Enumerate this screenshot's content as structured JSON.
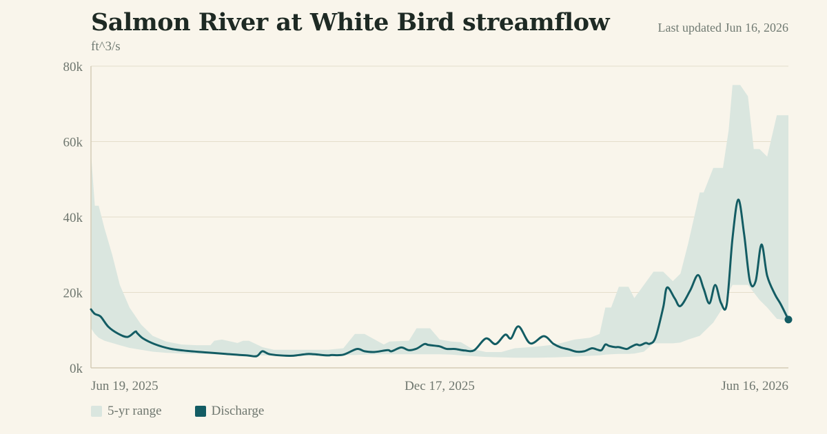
{
  "header": {
    "title": "Salmon River at White Bird streamflow",
    "updated": "Last updated Jun 16, 2026",
    "unit": "ft^3/s"
  },
  "legend": {
    "range_label": "5-yr range",
    "discharge_label": "Discharge"
  },
  "colors": {
    "background": "#f9f5eb",
    "range_fill": "#dae6df",
    "discharge_line": "#135c63",
    "grid": "#e4ddcb",
    "axis": "#d4ccb6"
  },
  "chart_data": {
    "type": "line",
    "ylabel": "ft^3/s",
    "ylim": [
      0,
      80000
    ],
    "y_ticks": [
      {
        "value": 0,
        "label": "0k"
      },
      {
        "value": 20000,
        "label": "20k"
      },
      {
        "value": 40000,
        "label": "40k"
      },
      {
        "value": 60000,
        "label": "60k"
      },
      {
        "value": 80000,
        "label": "80k"
      }
    ],
    "xlim": [
      "2025-06-19",
      "2026-06-16"
    ],
    "x_ticks": [
      {
        "value": "2025-06-19",
        "label": "Jun 19, 2025"
      },
      {
        "value": "2025-12-17",
        "label": "Dec 17, 2025"
      },
      {
        "value": "2026-06-16",
        "label": "Jun 16, 2026"
      }
    ],
    "grid": true,
    "legend_position": "bottom-left",
    "series": [
      {
        "name": "5-yr range",
        "kind": "band",
        "x": [
          "2025-06-19",
          "2025-06-21",
          "2025-06-23",
          "2025-06-26",
          "2025-06-30",
          "2025-07-04",
          "2025-07-09",
          "2025-07-15",
          "2025-07-21",
          "2025-07-28",
          "2025-08-05",
          "2025-08-13",
          "2025-08-20",
          "2025-08-22",
          "2025-08-26",
          "2025-09-03",
          "2025-09-06",
          "2025-09-09",
          "2025-09-16",
          "2025-09-22",
          "2025-09-30",
          "2025-10-10",
          "2025-10-20",
          "2025-10-28",
          "2025-11-03",
          "2025-11-08",
          "2025-11-18",
          "2025-11-21",
          "2025-12-01",
          "2025-12-05",
          "2025-12-12",
          "2025-12-17",
          "2025-12-23",
          "2025-12-28",
          "2026-01-03",
          "2026-01-10",
          "2026-01-18",
          "2026-01-25",
          "2026-02-05",
          "2026-02-15",
          "2026-02-25",
          "2026-03-05",
          "2026-03-10",
          "2026-03-13",
          "2026-03-16",
          "2026-03-20",
          "2026-03-25",
          "2026-03-28",
          "2026-04-02",
          "2026-04-07",
          "2026-04-12",
          "2026-04-17",
          "2026-04-21",
          "2026-04-25",
          "2026-05-01",
          "2026-05-03",
          "2026-05-08",
          "2026-05-13",
          "2026-05-16",
          "2026-05-18",
          "2026-05-22",
          "2026-05-26",
          "2026-05-29",
          "2026-06-01",
          "2026-06-05",
          "2026-06-10",
          "2026-06-16"
        ],
        "low": [
          10500,
          9000,
          8000,
          7200,
          6600,
          6000,
          5300,
          4800,
          4300,
          4000,
          3800,
          3700,
          3700,
          3600,
          3500,
          3300,
          3300,
          3300,
          3300,
          3200,
          3200,
          3200,
          3300,
          3400,
          3400,
          3500,
          3600,
          3600,
          3600,
          3600,
          3600,
          3600,
          3500,
          3300,
          3100,
          2900,
          2800,
          2700,
          2700,
          2800,
          3000,
          3200,
          3300,
          3500,
          3600,
          3700,
          3700,
          3800,
          4300,
          6500,
          6500,
          6500,
          6700,
          7500,
          8500,
          9500,
          12000,
          16000,
          20000,
          22000,
          22000,
          22000,
          20000,
          18000,
          16000,
          13000,
          12500
        ],
        "high": [
          57000,
          43000,
          43000,
          37000,
          30000,
          22000,
          16000,
          11500,
          8500,
          7000,
          6200,
          6000,
          6000,
          7200,
          7500,
          6600,
          7200,
          7200,
          5500,
          4800,
          4800,
          4800,
          4800,
          5200,
          9000,
          9000,
          6200,
          7000,
          7200,
          10500,
          10500,
          7500,
          7000,
          6800,
          5000,
          4200,
          4200,
          5200,
          5600,
          6200,
          7500,
          8000,
          9000,
          16000,
          16000,
          21500,
          21500,
          18500,
          22000,
          25500,
          25500,
          23000,
          25000,
          33000,
          46500,
          46500,
          53000,
          53000,
          63000,
          75000,
          75000,
          72000,
          58000,
          58000,
          56000,
          67000,
          67000
        ]
      },
      {
        "name": "Discharge",
        "kind": "line",
        "x": [
          "2025-06-19",
          "2025-06-21",
          "2025-06-24",
          "2025-06-28",
          "2025-07-03",
          "2025-07-08",
          "2025-07-12",
          "2025-07-13",
          "2025-07-16",
          "2025-07-22",
          "2025-07-30",
          "2025-08-08",
          "2025-08-18",
          "2025-08-28",
          "2025-09-08",
          "2025-09-13",
          "2025-09-16",
          "2025-09-20",
          "2025-09-30",
          "2025-10-05",
          "2025-10-10",
          "2025-10-15",
          "2025-10-20",
          "2025-10-22",
          "2025-10-28",
          "2025-11-04",
          "2025-11-08",
          "2025-11-13",
          "2025-11-20",
          "2025-11-22",
          "2025-11-27",
          "2025-12-01",
          "2025-12-05",
          "2025-12-09",
          "2025-12-11",
          "2025-12-14",
          "2025-12-17",
          "2025-12-19",
          "2025-12-21",
          "2025-12-25",
          "2025-12-30",
          "2026-01-04",
          "2026-01-10",
          "2026-01-15",
          "2026-01-20",
          "2026-01-23",
          "2026-01-27",
          "2026-02-02",
          "2026-02-09",
          "2026-02-14",
          "2026-02-18",
          "2026-02-22",
          "2026-02-26",
          "2026-03-02",
          "2026-03-06",
          "2026-03-09",
          "2026-03-11",
          "2026-03-13",
          "2026-03-15",
          "2026-03-18",
          "2026-03-20",
          "2026-03-24",
          "2026-03-26",
          "2026-03-29",
          "2026-03-31",
          "2026-04-03",
          "2026-04-05",
          "2026-04-08",
          "2026-04-12",
          "2026-04-14",
          "2026-04-18",
          "2026-04-21",
          "2026-04-26",
          "2026-04-30",
          "2026-05-03",
          "2026-05-06",
          "2026-05-09",
          "2026-05-12",
          "2026-05-15",
          "2026-05-18",
          "2026-05-21",
          "2026-05-24",
          "2026-05-27",
          "2026-05-30",
          "2026-06-02",
          "2026-06-05",
          "2026-06-09",
          "2026-06-12",
          "2026-06-16"
        ],
        "y": [
          15500,
          14300,
          13600,
          10900,
          9100,
          8200,
          9600,
          9200,
          7800,
          6300,
          5100,
          4500,
          4100,
          3700,
          3300,
          3100,
          4400,
          3600,
          3200,
          3400,
          3700,
          3500,
          3300,
          3400,
          3500,
          5000,
          4400,
          4200,
          4700,
          4400,
          5400,
          4700,
          5100,
          6300,
          6100,
          5900,
          5700,
          5300,
          5000,
          5000,
          4600,
          4700,
          7800,
          6300,
          8800,
          7800,
          11000,
          6500,
          8400,
          6400,
          5400,
          4900,
          4300,
          4400,
          5200,
          4800,
          4700,
          6200,
          5800,
          5500,
          5500,
          5000,
          5500,
          6200,
          6000,
          6600,
          6400,
          8000,
          16000,
          21300,
          18400,
          16400,
          20500,
          24600,
          21000,
          17100,
          22000,
          17200,
          16800,
          34400,
          44600,
          35500,
          23000,
          23000,
          32700,
          24400,
          19500,
          16900,
          12800
        ]
      }
    ]
  }
}
